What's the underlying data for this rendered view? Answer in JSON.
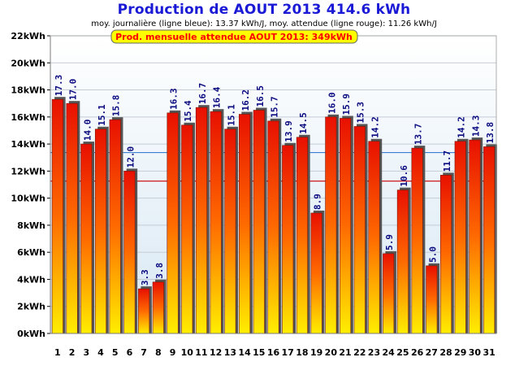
{
  "chart_data": {
    "type": "bar",
    "title": "Production de AOUT 2013  414.6 kWh",
    "subtitle": "moy. journalière (ligne bleue): 13.37 kWh/J,   moy. attendue (ligne rouge): 11.26 kWh/J",
    "annotation": "Prod. mensuelle attendue AOUT 2013: 349kWh",
    "y_unit": "kWh",
    "ylim": [
      0,
      22
    ],
    "y_ticks": [
      0,
      2,
      4,
      6,
      8,
      10,
      12,
      14,
      16,
      18,
      20,
      22
    ],
    "categories": [
      "1",
      "2",
      "3",
      "4",
      "5",
      "6",
      "7",
      "8",
      "9",
      "10",
      "11",
      "12",
      "13",
      "14",
      "15",
      "16",
      "17",
      "18",
      "19",
      "20",
      "21",
      "22",
      "23",
      "24",
      "25",
      "26",
      "27",
      "28",
      "29",
      "30",
      "31"
    ],
    "values": [
      17.3,
      17.0,
      14.0,
      15.1,
      15.8,
      12.0,
      3.3,
      3.8,
      16.3,
      15.4,
      16.7,
      16.4,
      15.1,
      16.2,
      16.5,
      15.7,
      13.9,
      14.5,
      8.9,
      16.0,
      15.9,
      15.3,
      14.2,
      5.9,
      10.6,
      13.7,
      5.0,
      11.7,
      14.2,
      14.3,
      13.8
    ],
    "reference_lines": [
      {
        "name": "moy. journalière",
        "value": 13.37,
        "color": "#3a7fd0"
      },
      {
        "name": "moy. attendue",
        "value": 11.26,
        "color": "#cc0000"
      }
    ],
    "grid": true,
    "colors": {
      "title": "#1a1ad6",
      "bar_top": "#e81000",
      "bar_bottom": "#ffee00",
      "annotation_bg": "#ffff00",
      "annotation_text": "#ff0000"
    }
  }
}
